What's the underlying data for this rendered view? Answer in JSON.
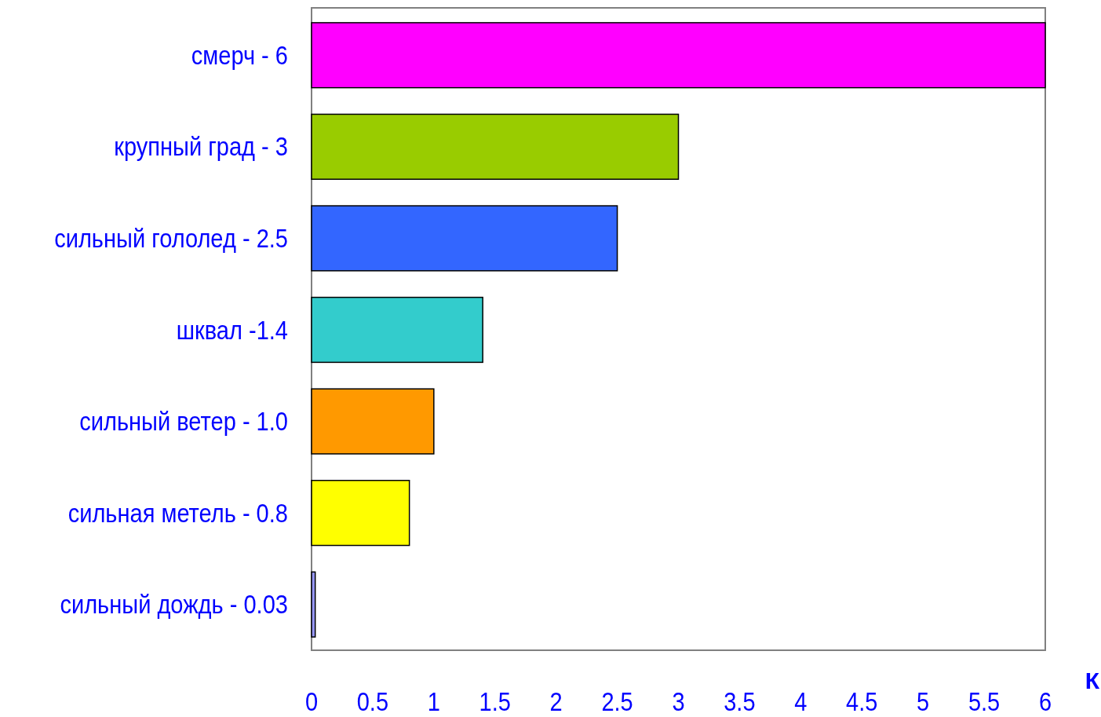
{
  "chart_data": {
    "type": "bar",
    "orientation": "horizontal",
    "xlabel": "К",
    "categories": [
      "смерч - 6",
      "крупный град - 3",
      "сильный гололед - 2.5",
      "шквал -1.4",
      "сильный ветер - 1.0",
      "сильная метель - 0.8",
      "сильный дождь - 0.03"
    ],
    "values": [
      6,
      3,
      2.5,
      1.4,
      1.0,
      0.8,
      0.03
    ],
    "colors": [
      "#ff00ff",
      "#99cc00",
      "#3366ff",
      "#33cccc",
      "#ff9900",
      "#ffff00",
      "#9999ff"
    ],
    "xlim": [
      0,
      6
    ],
    "xticks": [
      0,
      0.5,
      1,
      1.5,
      2,
      2.5,
      3,
      3.5,
      4,
      4.5,
      5,
      5.5,
      6
    ],
    "grid": false
  }
}
